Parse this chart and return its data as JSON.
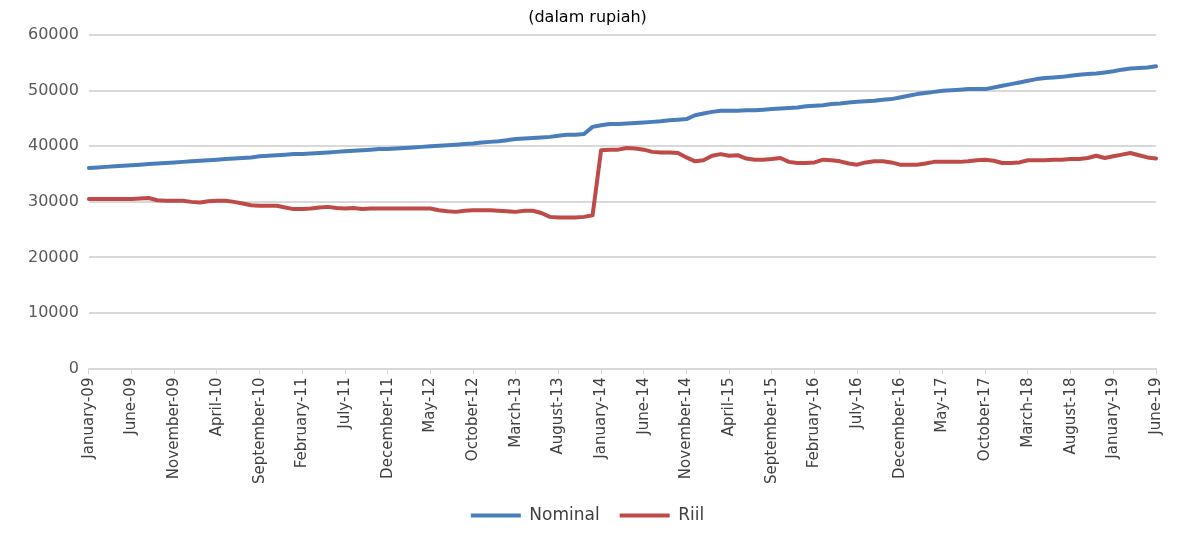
{
  "chart_data": {
    "type": "line",
    "title": "(dalam rupiah)",
    "categories": [
      "January-09",
      null,
      null,
      null,
      null,
      "June-09",
      null,
      null,
      null,
      null,
      "November-09",
      null,
      null,
      null,
      null,
      "April-10",
      null,
      null,
      null,
      null,
      "September-10",
      null,
      null,
      null,
      null,
      "February-11",
      null,
      null,
      null,
      null,
      "July-11",
      null,
      null,
      null,
      null,
      "December-11",
      null,
      null,
      null,
      null,
      "May-12",
      null,
      null,
      null,
      null,
      "October-12",
      null,
      null,
      null,
      null,
      "March-13",
      null,
      null,
      null,
      null,
      "August-13",
      null,
      null,
      null,
      null,
      "January-14",
      null,
      null,
      null,
      null,
      "June-14",
      null,
      null,
      null,
      null,
      "November-14",
      null,
      null,
      null,
      null,
      "April-15",
      null,
      null,
      null,
      null,
      "September-15",
      null,
      null,
      null,
      null,
      "February-16",
      null,
      null,
      null,
      null,
      "July-16",
      null,
      null,
      null,
      null,
      "December-16",
      null,
      null,
      null,
      null,
      "May-17",
      null,
      null,
      null,
      null,
      "October-17",
      null,
      null,
      null,
      null,
      "March-18",
      null,
      null,
      null,
      null,
      "August-18",
      null,
      null,
      null,
      null,
      "January-19",
      null,
      null,
      null,
      null,
      "June-19"
    ],
    "series": [
      {
        "name": "Nominal",
        "color": "#4a7ebb",
        "values": [
          36100,
          36200,
          36300,
          36400,
          36500,
          36600,
          36700,
          36800,
          36900,
          37000,
          37100,
          37200,
          37300,
          37400,
          37500,
          37600,
          37700,
          37800,
          37900,
          38000,
          38200,
          38300,
          38400,
          38500,
          38600,
          38600,
          38700,
          38800,
          38900,
          39000,
          39100,
          39200,
          39300,
          39400,
          39500,
          39500,
          39600,
          39700,
          39800,
          39900,
          40000,
          40100,
          40200,
          40300,
          40400,
          40500,
          40700,
          40800,
          40900,
          41100,
          41300,
          41400,
          41500,
          41600,
          41700,
          41900,
          42100,
          42100,
          42200,
          43500,
          43800,
          44000,
          44000,
          44100,
          44200,
          44300,
          44400,
          44500,
          44700,
          44800,
          44900,
          45600,
          45900,
          46200,
          46400,
          46400,
          46400,
          46500,
          46500,
          46600,
          46700,
          46800,
          46900,
          47000,
          47200,
          47300,
          47400,
          47600,
          47700,
          47900,
          48000,
          48100,
          48200,
          48400,
          48500,
          48800,
          49100,
          49400,
          49600,
          49800,
          50000,
          50100,
          50200,
          50300,
          50300,
          50300,
          50600,
          50900,
          51200,
          51500,
          51800,
          52100,
          52300,
          52400,
          52500,
          52700,
          52900,
          53000,
          53100,
          53300,
          53500,
          53800,
          54000,
          54100,
          54200,
          54400
        ]
      },
      {
        "name": "Riil",
        "color": "#be4b48",
        "values": [
          30500,
          30500,
          30500,
          30500,
          30500,
          30500,
          30600,
          30700,
          30300,
          30200,
          30200,
          30200,
          30000,
          29900,
          30100,
          30200,
          30200,
          30000,
          29700,
          29400,
          29300,
          29300,
          29300,
          29000,
          28700,
          28700,
          28800,
          29000,
          29100,
          28900,
          28800,
          28900,
          28700,
          28800,
          28800,
          28800,
          28800,
          28800,
          28800,
          28800,
          28800,
          28500,
          28300,
          28200,
          28400,
          28500,
          28500,
          28500,
          28400,
          28300,
          28200,
          28400,
          28400,
          28000,
          27300,
          27200,
          27200,
          27200,
          27300,
          27600,
          39300,
          39400,
          39400,
          39700,
          39600,
          39400,
          39000,
          38900,
          38900,
          38800,
          38000,
          37300,
          37500,
          38300,
          38600,
          38300,
          38400,
          37800,
          37600,
          37600,
          37700,
          37900,
          37200,
          37000,
          37000,
          37100,
          37600,
          37500,
          37300,
          36900,
          36700,
          37100,
          37300,
          37300,
          37100,
          36700,
          36700,
          36700,
          36900,
          37200,
          37200,
          37200,
          37200,
          37300,
          37500,
          37600,
          37400,
          37000,
          37000,
          37100,
          37500,
          37500,
          37500,
          37600,
          37600,
          37700,
          37700,
          37900,
          38300,
          37900,
          38200,
          38500,
          38800,
          38400,
          38000,
          37800
        ]
      }
    ],
    "ylim": [
      0,
      60000
    ],
    "yticks": [
      0,
      10000,
      20000,
      30000,
      40000,
      50000,
      60000
    ],
    "grid": "y",
    "legend": "bottom",
    "marker": "none",
    "line_style": "solid"
  }
}
